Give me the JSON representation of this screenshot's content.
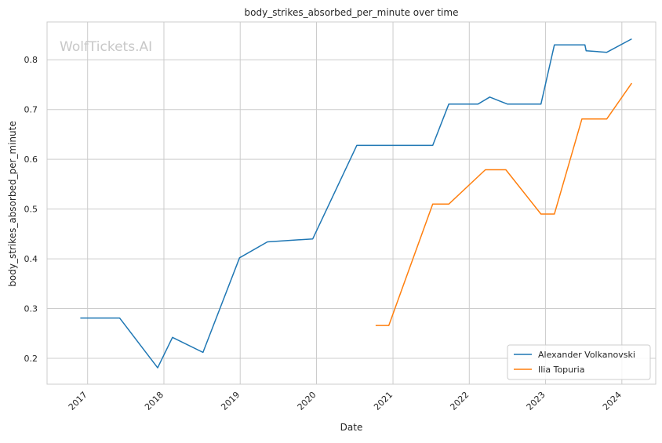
{
  "chart_data": {
    "type": "line",
    "title": "body_strikes_absorbed_per_minute over time",
    "xlabel": "Date",
    "ylabel": "body_strikes_absorbed_per_minute",
    "watermark": "WolfTickets.AI",
    "x_ticks": [
      "2017",
      "2018",
      "2019",
      "2020",
      "2021",
      "2022",
      "2023",
      "2024"
    ],
    "y_ticks": [
      "0.2",
      "0.3",
      "0.4",
      "0.5",
      "0.6",
      "0.7",
      "0.8"
    ],
    "ylim": [
      0.148,
      0.876
    ],
    "xlim": [
      "2016-06-21",
      "2024-06-11"
    ],
    "grid": true,
    "legend_position": "lower-right",
    "series": [
      {
        "name": "Alexander Volkanovski",
        "color": "#1f77b4",
        "points": [
          {
            "x": "2016-11-27",
            "y": 0.281
          },
          {
            "x": "2017-06-03",
            "y": 0.281
          },
          {
            "x": "2017-12-02",
            "y": 0.181
          },
          {
            "x": "2018-02-11",
            "y": 0.242
          },
          {
            "x": "2018-07-07",
            "y": 0.212
          },
          {
            "x": "2018-12-29",
            "y": 0.402
          },
          {
            "x": "2019-05-11",
            "y": 0.434
          },
          {
            "x": "2019-12-14",
            "y": 0.44
          },
          {
            "x": "2020-07-12",
            "y": 0.628
          },
          {
            "x": "2021-07-10",
            "y": 0.628
          },
          {
            "x": "2021-09-25",
            "y": 0.711
          },
          {
            "x": "2022-02-12",
            "y": 0.711
          },
          {
            "x": "2022-04-09",
            "y": 0.725
          },
          {
            "x": "2022-07-02",
            "y": 0.711
          },
          {
            "x": "2022-12-10",
            "y": 0.711
          },
          {
            "x": "2023-02-12",
            "y": 0.83
          },
          {
            "x": "2023-07-08",
            "y": 0.83
          },
          {
            "x": "2023-07-14",
            "y": 0.818
          },
          {
            "x": "2023-10-21",
            "y": 0.815
          },
          {
            "x": "2024-02-17",
            "y": 0.842
          }
        ]
      },
      {
        "name": "Ilia Topuria",
        "color": "#ff7f0e",
        "points": [
          {
            "x": "2020-10-10",
            "y": 0.266
          },
          {
            "x": "2020-12-12",
            "y": 0.266
          },
          {
            "x": "2021-07-10",
            "y": 0.51
          },
          {
            "x": "2021-09-25",
            "y": 0.51
          },
          {
            "x": "2022-03-19",
            "y": 0.579
          },
          {
            "x": "2022-06-25",
            "y": 0.579
          },
          {
            "x": "2022-12-10",
            "y": 0.49
          },
          {
            "x": "2023-02-12",
            "y": 0.49
          },
          {
            "x": "2023-06-24",
            "y": 0.681
          },
          {
            "x": "2023-10-21",
            "y": 0.681
          },
          {
            "x": "2024-02-17",
            "y": 0.753
          }
        ]
      }
    ]
  }
}
